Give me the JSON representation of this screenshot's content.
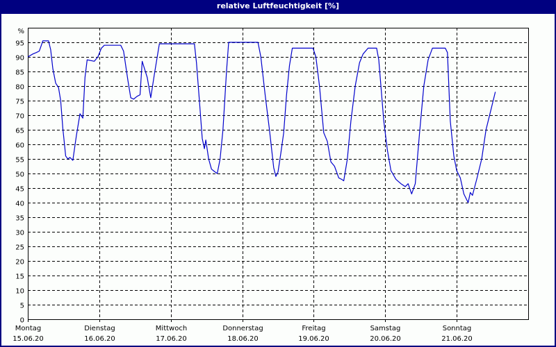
{
  "window": {
    "title": "relative Luftfeuchtigkeit [%]",
    "frame_color": "#000080",
    "background": "#fcfefc"
  },
  "chart_data": {
    "type": "line",
    "title": "relative Luftfeuchtigkeit [%]",
    "xlabel": "",
    "ylabel": "%",
    "ylim": [
      0,
      100
    ],
    "yticks": [
      0,
      5,
      10,
      15,
      20,
      25,
      30,
      35,
      40,
      45,
      50,
      55,
      60,
      65,
      70,
      75,
      80,
      85,
      90,
      95
    ],
    "y_unit_label": "%",
    "grid": true,
    "legend": null,
    "line_color": "#0000cc",
    "x_categories": [
      {
        "day": "Montag",
        "date": "15.06.20"
      },
      {
        "day": "Dienstag",
        "date": "16.06.20"
      },
      {
        "day": "Mittwoch",
        "date": "17.06.20"
      },
      {
        "day": "Donnerstag",
        "date": "18.06.20"
      },
      {
        "day": "Freitag",
        "date": "19.06.20"
      },
      {
        "day": "Samstag",
        "date": "20.06.20"
      },
      {
        "day": "Sonntag",
        "date": "21.06.20"
      }
    ],
    "x_unit": "days since 15.06.20 00:00",
    "series": [
      {
        "name": "relative Luftfeuchtigkeit",
        "points": [
          [
            0.0,
            90.0
          ],
          [
            0.07,
            91.0
          ],
          [
            0.12,
            91.5
          ],
          [
            0.16,
            92.0
          ],
          [
            0.19,
            94.0
          ],
          [
            0.21,
            95.5
          ],
          [
            0.29,
            95.5
          ],
          [
            0.32,
            92.5
          ],
          [
            0.35,
            86.0
          ],
          [
            0.39,
            81.0
          ],
          [
            0.43,
            79.5
          ],
          [
            0.46,
            75.0
          ],
          [
            0.49,
            65.5
          ],
          [
            0.53,
            56.0
          ],
          [
            0.56,
            55.0
          ],
          [
            0.59,
            55.5
          ],
          [
            0.63,
            54.5
          ],
          [
            0.68,
            63.0
          ],
          [
            0.73,
            70.5
          ],
          [
            0.77,
            69.0
          ],
          [
            0.8,
            83.0
          ],
          [
            0.83,
            89.0
          ],
          [
            0.93,
            88.5
          ],
          [
            0.98,
            90.0
          ],
          [
            1.03,
            93.0
          ],
          [
            1.07,
            94.0
          ],
          [
            1.3,
            94.0
          ],
          [
            1.34,
            92.0
          ],
          [
            1.4,
            82.0
          ],
          [
            1.44,
            76.0
          ],
          [
            1.48,
            75.5
          ],
          [
            1.53,
            76.5
          ],
          [
            1.57,
            77.0
          ],
          [
            1.6,
            88.5
          ],
          [
            1.67,
            83.0
          ],
          [
            1.72,
            76.0
          ],
          [
            1.77,
            84.0
          ],
          [
            1.84,
            94.5
          ],
          [
            2.33,
            94.5
          ],
          [
            2.36,
            88.0
          ],
          [
            2.4,
            75.0
          ],
          [
            2.44,
            62.0
          ],
          [
            2.47,
            58.5
          ],
          [
            2.49,
            61.5
          ],
          [
            2.53,
            55.0
          ],
          [
            2.57,
            51.5
          ],
          [
            2.62,
            50.5
          ],
          [
            2.65,
            50.0
          ],
          [
            2.69,
            55.0
          ],
          [
            2.73,
            65.0
          ],
          [
            2.78,
            85.0
          ],
          [
            2.81,
            95.0
          ],
          [
            3.22,
            95.0
          ],
          [
            3.26,
            90.0
          ],
          [
            3.32,
            77.0
          ],
          [
            3.38,
            65.0
          ],
          [
            3.44,
            52.0
          ],
          [
            3.47,
            49.0
          ],
          [
            3.5,
            50.5
          ],
          [
            3.54,
            57.0
          ],
          [
            3.58,
            64.0
          ],
          [
            3.62,
            77.0
          ],
          [
            3.66,
            87.0
          ],
          [
            3.7,
            93.0
          ],
          [
            3.99,
            93.0
          ],
          [
            4.03,
            90.0
          ],
          [
            4.08,
            80.0
          ],
          [
            4.14,
            64.0
          ],
          [
            4.19,
            61.0
          ],
          [
            4.24,
            54.0
          ],
          [
            4.29,
            52.5
          ],
          [
            4.35,
            48.5
          ],
          [
            4.39,
            48.0
          ],
          [
            4.42,
            47.5
          ],
          [
            4.47,
            55.0
          ],
          [
            4.52,
            68.0
          ],
          [
            4.58,
            80.0
          ],
          [
            4.64,
            88.0
          ],
          [
            4.69,
            91.0
          ],
          [
            4.76,
            93.0
          ],
          [
            4.88,
            93.0
          ],
          [
            4.91,
            89.0
          ],
          [
            4.98,
            68.0
          ],
          [
            5.03,
            58.0
          ],
          [
            5.08,
            51.0
          ],
          [
            5.15,
            48.0
          ],
          [
            5.22,
            46.5
          ],
          [
            5.28,
            45.5
          ],
          [
            5.32,
            46.5
          ],
          [
            5.37,
            43.0
          ],
          [
            5.42,
            46.5
          ],
          [
            5.48,
            64.0
          ],
          [
            5.54,
            80.0
          ],
          [
            5.6,
            89.0
          ],
          [
            5.66,
            93.0
          ],
          [
            5.77,
            93.0
          ],
          [
            5.84,
            93.0
          ],
          [
            5.87,
            91.5
          ],
          [
            5.91,
            68.0
          ],
          [
            5.96,
            56.0
          ],
          [
            6.0,
            51.0
          ],
          [
            6.05,
            48.5
          ],
          [
            6.1,
            43.0
          ],
          [
            6.16,
            40.0
          ],
          [
            6.19,
            43.5
          ],
          [
            6.22,
            42.5
          ],
          [
            6.28,
            48.0
          ],
          [
            6.35,
            55.0
          ],
          [
            6.41,
            65.0
          ],
          [
            6.47,
            71.0
          ],
          [
            6.54,
            78.0
          ]
        ]
      }
    ]
  },
  "axes": {
    "y_unit_label": "%",
    "y_tick_labels": [
      "0",
      "5",
      "10",
      "15",
      "20",
      "25",
      "30",
      "35",
      "40",
      "45",
      "50",
      "55",
      "60",
      "65",
      "70",
      "75",
      "80",
      "85",
      "90",
      "95"
    ],
    "x_day_labels": [
      "Montag",
      "Dienstag",
      "Mittwoch",
      "Donnerstag",
      "Freitag",
      "Samstag",
      "Sonntag"
    ],
    "x_date_labels": [
      "15.06.20",
      "16.06.20",
      "17.06.20",
      "18.06.20",
      "19.06.20",
      "20.06.20",
      "21.06.20"
    ]
  }
}
